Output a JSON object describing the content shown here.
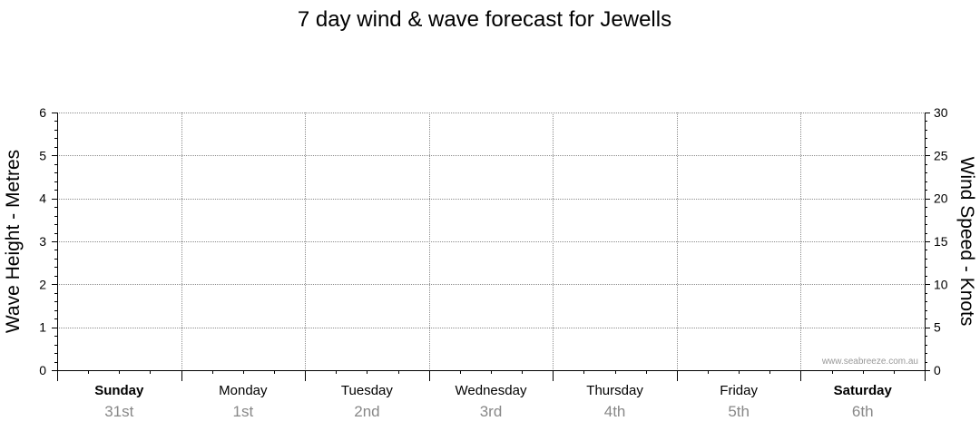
{
  "chart_data": {
    "type": "line",
    "title": "7 day wind & wave forecast for Jewells",
    "ylabel_left": "Wave Height - Metres",
    "ylabel_right": "Wind Speed - Knots",
    "ylim_left": [
      0,
      6
    ],
    "ylim_right": [
      0,
      30
    ],
    "yticks_left": [
      "0",
      "1",
      "2",
      "3",
      "4",
      "5",
      "6"
    ],
    "yticks_right": [
      "0",
      "5",
      "10",
      "15",
      "20",
      "25",
      "30"
    ],
    "grid": true,
    "days": [
      {
        "name": "Sunday",
        "date": "31st",
        "bold": true
      },
      {
        "name": "Monday",
        "date": "1st",
        "bold": false
      },
      {
        "name": "Tuesday",
        "date": "2nd",
        "bold": false
      },
      {
        "name": "Wednesday",
        "date": "3rd",
        "bold": false
      },
      {
        "name": "Thursday",
        "date": "4th",
        "bold": false
      },
      {
        "name": "Friday",
        "date": "5th",
        "bold": false
      },
      {
        "name": "Saturday",
        "date": "6th",
        "bold": true
      }
    ],
    "series": []
  },
  "watermark": "www.seabreeze.com.au"
}
